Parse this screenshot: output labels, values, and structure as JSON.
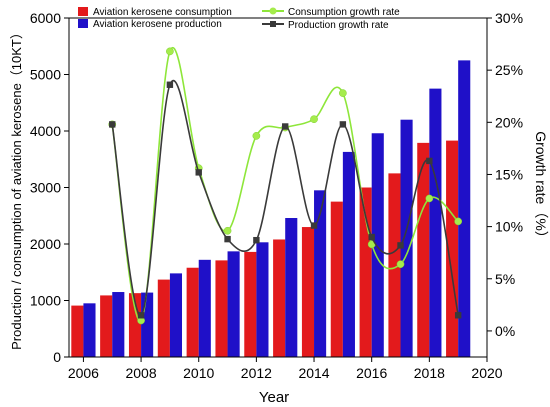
{
  "chart_data": {
    "type": "bar",
    "xlabel": "Year",
    "ylabel_left": "Production / consumption of aviation kerosene（10KT）",
    "ylabel_right": "Growth rate（%）",
    "x_ticks": [
      "2006",
      "2008",
      "2010",
      "2012",
      "2014",
      "2016",
      "2018",
      "2020"
    ],
    "x_tick_values": [
      2006,
      2008,
      2010,
      2012,
      2014,
      2016,
      2018,
      2020
    ],
    "xlim": [
      2005.5,
      2020
    ],
    "y_left_ticks": [
      "0",
      "1000",
      "2000",
      "3000",
      "4000",
      "5000",
      "6000"
    ],
    "y_left_tick_values": [
      0,
      1000,
      2000,
      3000,
      4000,
      5000,
      6000
    ],
    "ylim_left": [
      0,
      6000
    ],
    "y_right_ticks": [
      "0%",
      "5%",
      "10%",
      "15%",
      "20%",
      "25%",
      "30%"
    ],
    "y_right_tick_values": [
      0,
      5,
      10,
      15,
      20,
      25,
      30
    ],
    "ylim_right": [
      -2.5,
      30
    ],
    "years": [
      2006,
      2007,
      2008,
      2009,
      2010,
      2011,
      2012,
      2013,
      2014,
      2015,
      2016,
      2017,
      2018,
      2019
    ],
    "bar_series": [
      {
        "name": "Aviation kerosene consumption",
        "color": "#e31a1c",
        "values": [
          910,
          1090,
          1130,
          1370,
          1580,
          1710,
          1860,
          2080,
          2300,
          2750,
          3000,
          3250,
          3790,
          3830
        ]
      },
      {
        "name": "Aviation kerosene production",
        "color": "#1f10c8",
        "values": [
          950,
          1150,
          1140,
          1480,
          1720,
          1870,
          2030,
          2460,
          2950,
          3630,
          3960,
          4200,
          4750,
          5250
        ]
      }
    ],
    "line_series": [
      {
        "name": "Consumption growth rate",
        "color": "#8ee63a",
        "marker_color": "#a5ec4c",
        "x": [
          2007,
          2008,
          2009,
          2010,
          2011,
          2012,
          2013,
          2014,
          2015,
          2016,
          2017,
          2018,
          2019
        ],
        "values": [
          19.8,
          1.0,
          26.8,
          15.6,
          9.6,
          18.7,
          19.5,
          20.3,
          22.8,
          8.3,
          6.4,
          12.7,
          10.5
        ]
      },
      {
        "name": "Production growth rate",
        "color": "#3a3a3a",
        "marker_color": "#3a3a3a",
        "x": [
          2007,
          2008,
          2009,
          2010,
          2011,
          2012,
          2013,
          2014,
          2015,
          2016,
          2017,
          2018,
          2019
        ],
        "values": [
          19.8,
          1.5,
          23.6,
          15.2,
          8.8,
          8.7,
          19.6,
          10.1,
          19.8,
          9.0,
          8.2,
          16.3,
          1.5
        ]
      }
    ],
    "legend_position": "top"
  }
}
